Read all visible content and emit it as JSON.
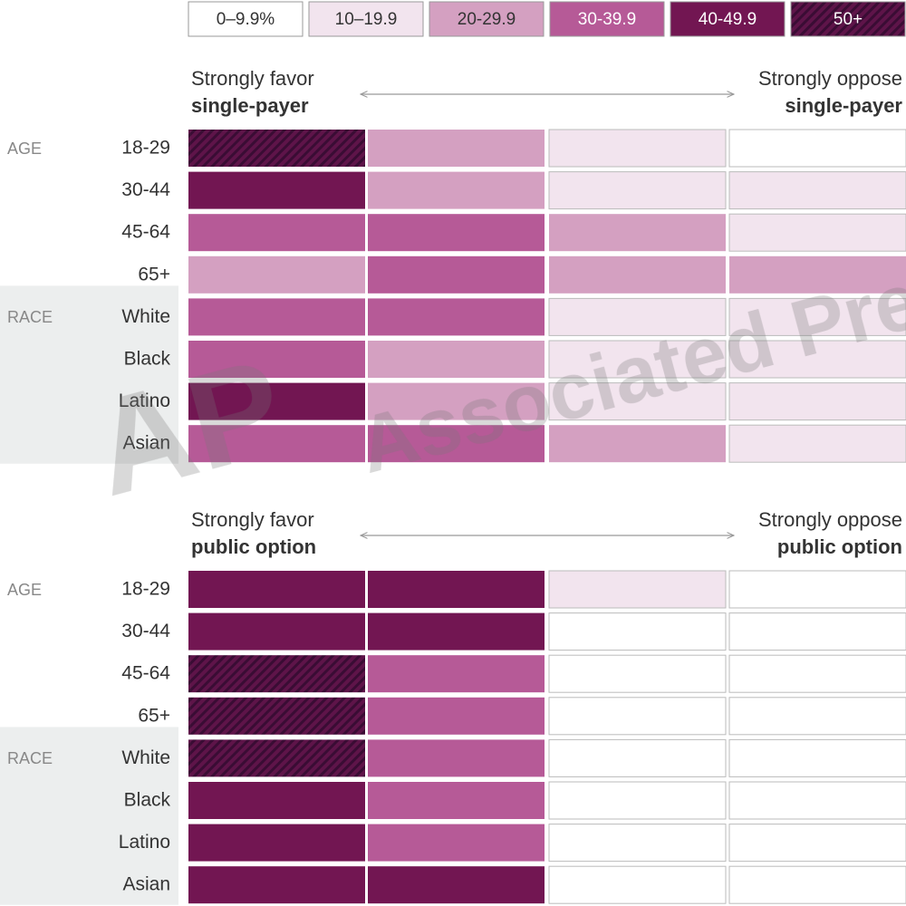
{
  "legend": [
    {
      "label": "0–9.9%",
      "min": 0,
      "color": "#ffffff"
    },
    {
      "label": "10–19.9",
      "min": 10,
      "color": "#f2e4ee"
    },
    {
      "label": "20-29.9",
      "min": 20,
      "color": "#d4a0c1"
    },
    {
      "label": "30-39.9",
      "min": 30,
      "color": "#b65a97"
    },
    {
      "label": "40-49.9",
      "min": 40,
      "color": "#721652"
    },
    {
      "label": "50+",
      "min": 50,
      "color": "#5e1449",
      "pattern": "hatch"
    }
  ],
  "watermark": [
    "AP",
    "Associated Press"
  ],
  "chart_data": [
    {
      "type": "heatmap",
      "left_label": [
        "Strongly favor",
        "single-payer"
      ],
      "right_label": [
        "Strongly oppose",
        "single-payer"
      ],
      "groups": [
        {
          "name": "AGE",
          "categories": [
            "18-29",
            "30-44",
            "45-64",
            "65+"
          ],
          "values": [
            [
              55,
              25,
              15,
              5
            ],
            [
              45,
              25,
              15,
              15
            ],
            [
              35,
              35,
              25,
              15
            ],
            [
              25,
              35,
              25,
              25
            ]
          ]
        },
        {
          "name": "RACE",
          "categories": [
            "White",
            "Black",
            "Latino",
            "Asian"
          ],
          "values": [
            [
              35,
              35,
              15,
              15
            ],
            [
              35,
              25,
              15,
              15
            ],
            [
              45,
              25,
              15,
              15
            ],
            [
              35,
              35,
              25,
              15
            ]
          ]
        }
      ]
    },
    {
      "type": "heatmap",
      "left_label": [
        "Strongly favor",
        "public option"
      ],
      "right_label": [
        "Strongly oppose",
        "public option"
      ],
      "groups": [
        {
          "name": "AGE",
          "categories": [
            "18-29",
            "30-44",
            "45-64",
            "65+"
          ],
          "values": [
            [
              45,
              45,
              15,
              5
            ],
            [
              45,
              45,
              5,
              5
            ],
            [
              55,
              35,
              5,
              5
            ],
            [
              55,
              35,
              5,
              5
            ]
          ]
        },
        {
          "name": "RACE",
          "categories": [
            "White",
            "Black",
            "Latino",
            "Asian"
          ],
          "values": [
            [
              55,
              35,
              5,
              5
            ],
            [
              45,
              35,
              5,
              5
            ],
            [
              45,
              35,
              5,
              5
            ],
            [
              45,
              45,
              5,
              5
            ]
          ]
        }
      ]
    }
  ]
}
